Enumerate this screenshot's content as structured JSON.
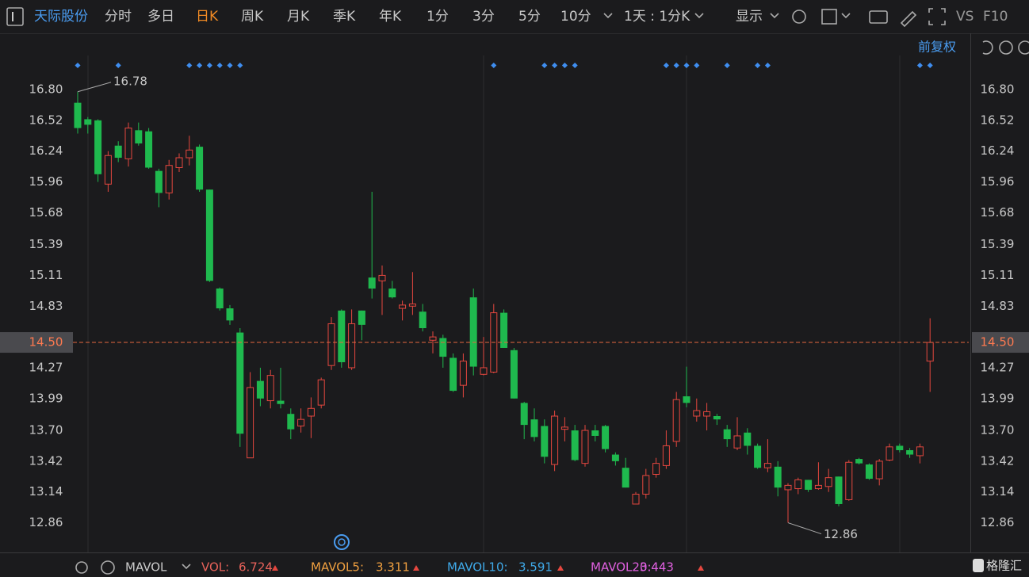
{
  "toolbar": {
    "stock": "天际股份",
    "tabs": [
      "分时",
      "多日",
      "日K",
      "周K",
      "月K",
      "季K",
      "年K",
      "1分",
      "3分",
      "5分",
      "10分"
    ],
    "period": "1天 : 1分K",
    "display": "显示",
    "vs": "VS",
    "f10": "F10"
  },
  "adjust": "前复权",
  "chart_data": {
    "type": "candlestick",
    "ylim": [
      12.59,
      17.11
    ],
    "yticks": [
      {
        "value": 16.8,
        "label": "16.80"
      },
      16.52,
      16.24,
      15.96,
      15.68,
      15.39,
      15.11,
      14.83,
      14.27,
      13.99,
      {
        "value": 13.7,
        "label": "13.70"
      },
      13.42,
      13.14,
      12.86
    ],
    "up_color": "#e5473f",
    "down_color": "#1fb94e",
    "last_price": {
      "value": 14.5,
      "label": "14.50"
    },
    "high_label": 16.78,
    "low_label": 12.86,
    "open": [
      16.68,
      16.53,
      16.52,
      15.94,
      16.29,
      16.17,
      16.43,
      16.42,
      16.06,
      15.86,
      16.09,
      16.18,
      16.28,
      15.89,
      14.99,
      14.81,
      14.59,
      13.45,
      14.15,
      13.97,
      13.97,
      13.85,
      13.74,
      13.83,
      13.93,
      14.29,
      14.79,
      14.27,
      14.79,
      15.09,
      15.06,
      14.99,
      14.81,
      14.83,
      14.78,
      14.52,
      14.54,
      14.36,
      14.11,
      14.91,
      14.21,
      14.23,
      14.77,
      14.43,
      13.95,
      13.8,
      13.74,
      13.39,
      13.71,
      13.7,
      13.4,
      13.7,
      13.74,
      13.48,
      13.36,
      13.03,
      13.12,
      13.3,
      13.38,
      13.6,
      14.01,
      13.83,
      13.83,
      13.83,
      13.71,
      13.54,
      13.68,
      13.56,
      13.36,
      13.37,
      13.16,
      13.17,
      13.25,
      13.17,
      13.19,
      13.28,
      13.07,
      13.44,
      13.39,
      13.26,
      13.43,
      13.56,
      13.52,
      13.47,
      14.33
    ],
    "close": [
      16.45,
      16.48,
      16.03,
      16.2,
      16.18,
      16.45,
      16.31,
      16.09,
      15.86,
      16.11,
      16.18,
      16.25,
      15.89,
      15.06,
      14.81,
      14.7,
      13.67,
      14.09,
      13.99,
      14.2,
      13.94,
      13.71,
      13.8,
      13.9,
      14.16,
      14.67,
      14.32,
      14.67,
      14.66,
      14.99,
      15.11,
      14.91,
      14.84,
      14.85,
      14.63,
      14.55,
      14.37,
      14.06,
      14.33,
      14.28,
      14.27,
      14.77,
      14.45,
      13.99,
      13.75,
      13.64,
      13.46,
      13.83,
      13.73,
      13.43,
      13.7,
      13.65,
      13.53,
      13.42,
      13.18,
      13.12,
      13.29,
      13.4,
      13.56,
      13.98,
      13.95,
      13.88,
      13.87,
      13.8,
      13.62,
      13.65,
      13.56,
      13.36,
      13.4,
      13.18,
      13.2,
      13.25,
      13.16,
      13.2,
      13.27,
      13.03,
      13.41,
      13.4,
      13.26,
      13.42,
      13.55,
      13.52,
      13.48,
      13.55,
      14.5
    ],
    "high": [
      16.78,
      16.55,
      16.53,
      16.24,
      16.33,
      16.5,
      16.5,
      16.45,
      16.08,
      16.16,
      16.22,
      16.38,
      16.3,
      15.89,
      15.0,
      14.84,
      14.63,
      14.23,
      14.27,
      14.25,
      14.27,
      13.9,
      13.9,
      14.0,
      14.18,
      14.73,
      14.8,
      14.8,
      14.79,
      15.87,
      15.2,
      15.06,
      14.88,
      15.14,
      14.85,
      14.6,
      14.57,
      14.4,
      14.4,
      14.99,
      14.55,
      14.85,
      14.8,
      14.45,
      13.96,
      13.9,
      13.8,
      13.88,
      13.82,
      13.75,
      13.75,
      13.75,
      13.75,
      13.5,
      13.45,
      13.14,
      13.35,
      13.45,
      13.7,
      14.05,
      14.28,
      13.99,
      13.95,
      13.85,
      13.75,
      13.82,
      13.72,
      13.58,
      13.62,
      13.42,
      13.22,
      13.27,
      13.25,
      13.41,
      13.35,
      13.28,
      13.43,
      13.45,
      13.4,
      13.44,
      13.58,
      13.58,
      13.54,
      13.58,
      14.72
    ],
    "low": [
      16.4,
      16.4,
      15.96,
      15.87,
      16.14,
      16.1,
      16.29,
      16.08,
      15.73,
      15.8,
      16.05,
      16.11,
      15.87,
      15.05,
      14.79,
      14.66,
      13.55,
      13.45,
      13.92,
      13.9,
      13.9,
      13.62,
      13.68,
      13.63,
      13.9,
      14.25,
      14.27,
      14.25,
      14.52,
      14.9,
      14.75,
      14.9,
      14.7,
      14.75,
      14.6,
      14.4,
      14.27,
      14.05,
      14.0,
      14.2,
      14.2,
      14.22,
      14.45,
      13.99,
      13.62,
      13.6,
      13.4,
      13.33,
      13.6,
      13.42,
      13.37,
      13.6,
      13.5,
      13.38,
      13.18,
      13.03,
      13.08,
      13.27,
      13.35,
      13.55,
      13.91,
      13.78,
      13.7,
      13.75,
      13.55,
      13.52,
      13.48,
      13.35,
      13.32,
      13.1,
      12.86,
      13.12,
      13.14,
      13.16,
      13.14,
      13.01,
      13.06,
      13.39,
      13.25,
      13.2,
      13.42,
      13.5,
      13.45,
      13.4,
      14.05
    ]
  },
  "footer": {
    "indicator": "MAVOL",
    "items": [
      {
        "name": "VOL:",
        "value": "6.724",
        "color": "#e8625a"
      },
      {
        "name": "MAVOL5:",
        "value": "3.311",
        "color": "#f0a040"
      },
      {
        "name": "MAVOL10:",
        "value": "3.591",
        "color": "#3fa9e8"
      },
      {
        "name": "MAVOL20:",
        "value": "3.443",
        "color": "#e060e0"
      }
    ]
  },
  "logo": "格隆汇"
}
